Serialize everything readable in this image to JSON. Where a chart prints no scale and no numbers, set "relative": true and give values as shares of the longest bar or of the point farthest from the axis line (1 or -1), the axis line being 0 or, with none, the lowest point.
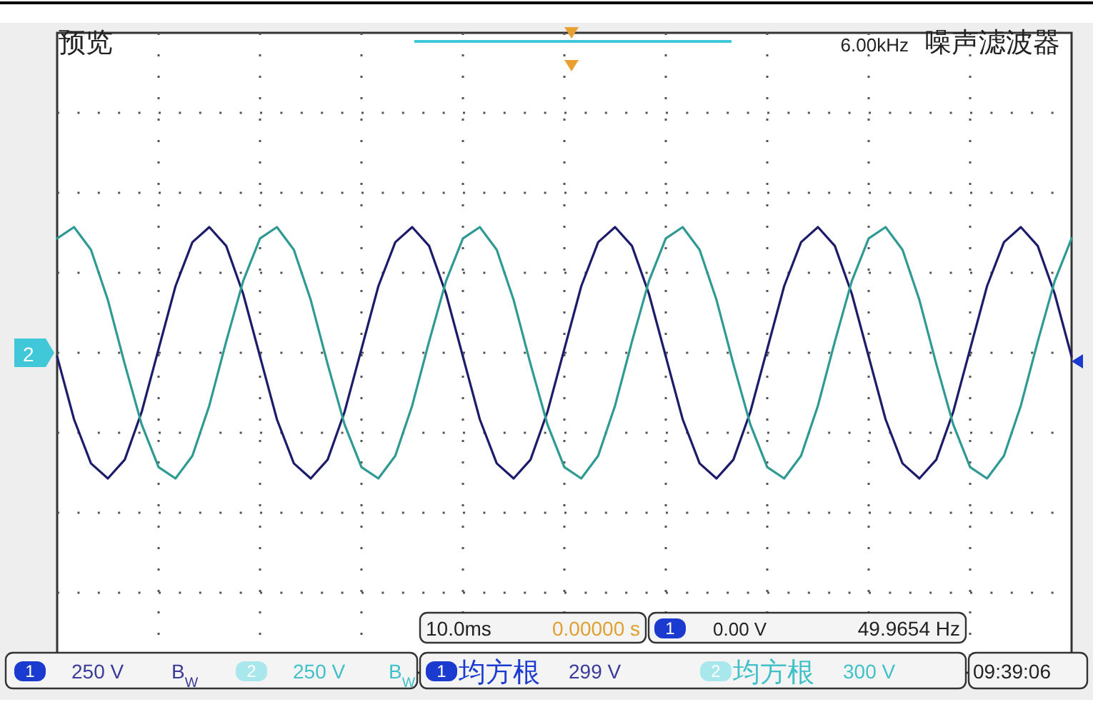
{
  "chart_data": {
    "type": "line",
    "relative": true,
    "grid": true,
    "line_style": "solid",
    "marker": "none",
    "categories": [
      null,
      null,
      null,
      null,
      null,
      null,
      null,
      null,
      null,
      null,
      null,
      null,
      null,
      null,
      null,
      null,
      null,
      null,
      null,
      null,
      null,
      null,
      null,
      null,
      null,
      null,
      null,
      null,
      null,
      null,
      null,
      null,
      null,
      null,
      null,
      null,
      null,
      null,
      null,
      null,
      null,
      null,
      null,
      null,
      null,
      null,
      null,
      null,
      null,
      null,
      null,
      null,
      null,
      null,
      null,
      null,
      null,
      null,
      null,
      null,
      null
    ],
    "series": [
      {
        "color": "#1c1c6b",
        "values": [
          -0.03,
          -0.53,
          -0.88,
          -1.0,
          -0.85,
          -0.47,
          0.03,
          0.53,
          0.88,
          1.0,
          0.85,
          0.47,
          -0.03,
          -0.53,
          -0.88,
          -1.0,
          -0.85,
          -0.47,
          0.03,
          0.53,
          0.88,
          1.0,
          0.85,
          0.47,
          -0.03,
          -0.53,
          -0.88,
          -1.0,
          -0.85,
          -0.47,
          0.03,
          0.53,
          0.88,
          1.0,
          0.85,
          0.47,
          -0.03,
          -0.53,
          -0.88,
          -1.0,
          -0.85,
          -0.47,
          0.03,
          0.53,
          0.88,
          1.0,
          0.85,
          0.47,
          -0.03,
          -0.53,
          -0.88,
          -1.0,
          -0.85,
          -0.47,
          0.03,
          0.53,
          0.88,
          1.0,
          0.85,
          0.47,
          -0.03
        ]
      },
      {
        "color": "#2e9a92",
        "values": [
          0.91,
          1.0,
          0.82,
          0.42,
          -0.09,
          -0.57,
          -0.91,
          -1.0,
          -0.82,
          -0.42,
          0.09,
          0.57,
          0.91,
          1.0,
          0.82,
          0.42,
          -0.09,
          -0.57,
          -0.91,
          -1.0,
          -0.82,
          -0.42,
          0.09,
          0.57,
          0.91,
          1.0,
          0.82,
          0.42,
          -0.09,
          -0.57,
          -0.91,
          -1.0,
          -0.82,
          -0.42,
          0.09,
          0.57,
          0.91,
          1.0,
          0.82,
          0.42,
          -0.09,
          -0.57,
          -0.91,
          -1.0,
          -0.82,
          -0.42,
          0.09,
          0.57,
          0.91,
          1.0,
          0.82,
          0.42,
          -0.09,
          -0.57,
          -0.91,
          -1.0,
          -0.82,
          -0.42,
          0.09,
          0.57,
          0.91
        ]
      }
    ],
    "annotations": [
      "预览",
      "6.00kHz",
      "噪声滤波器",
      "2",
      "10.0ms",
      "0.00000 s",
      "1",
      "0.00 V",
      "49.9654 Hz",
      "1",
      "250 V",
      "B$_{W}$",
      "2",
      "250 V",
      "B$_{W}$",
      "1",
      "均方根",
      "299 V",
      "2",
      "均方根",
      "300 V",
      "09:39:06"
    ]
  }
}
